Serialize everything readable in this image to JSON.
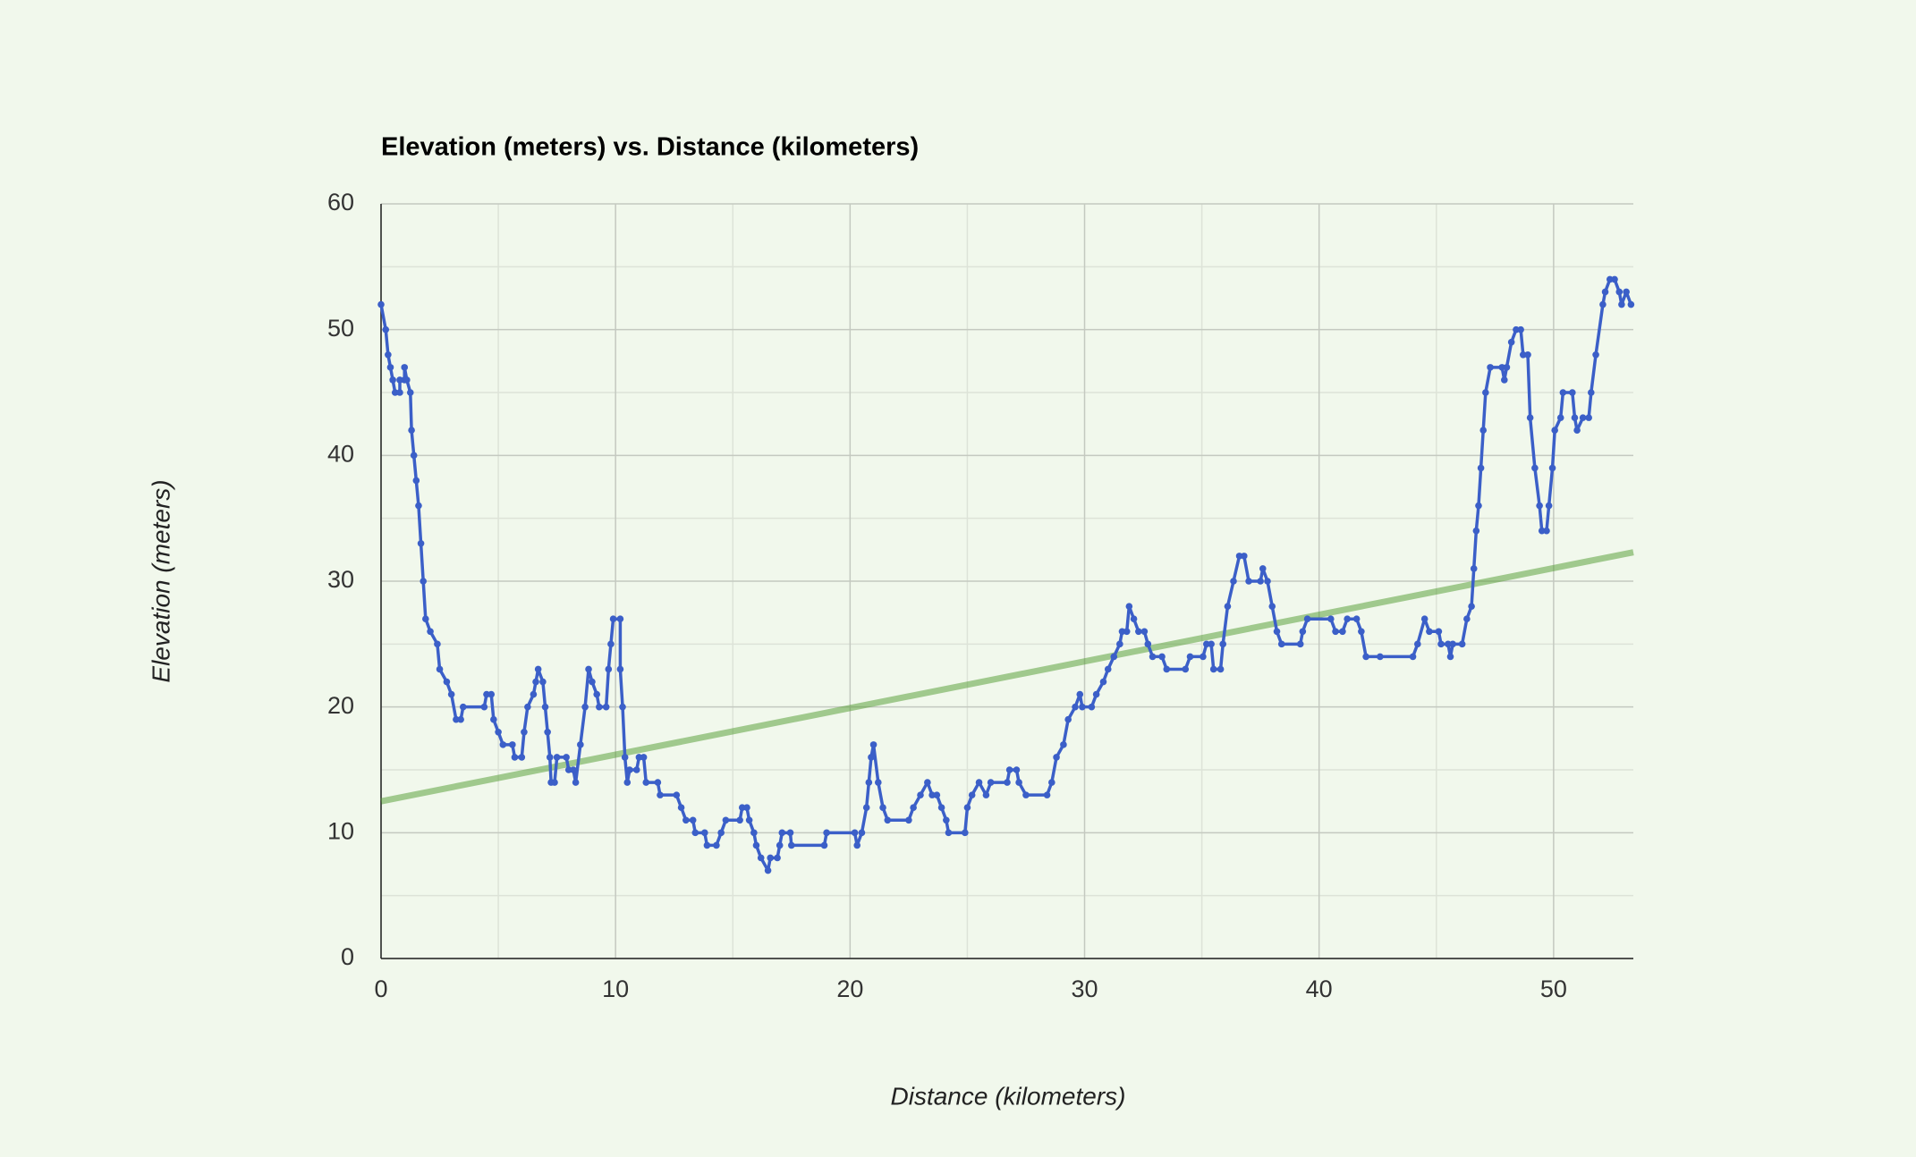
{
  "chart_data": {
    "type": "line",
    "title": "Elevation (meters) vs. Distance (kilometers)",
    "x_label": "Distance (kilometers)",
    "y_label": "Elevation (meters)",
    "xlim": [
      0,
      53.4
    ],
    "ylim": [
      0,
      60
    ],
    "xticks": [
      0,
      10,
      20,
      30,
      40,
      50
    ],
    "yticks": [
      0,
      10,
      20,
      30,
      40,
      50,
      60
    ],
    "xminor": [
      5,
      15,
      25,
      35,
      45
    ],
    "yminor": [
      5,
      15,
      25,
      35,
      45,
      55
    ],
    "grid": true,
    "markers": true,
    "x": [
      0,
      0.2,
      0.3,
      0.4,
      0.5,
      0.6,
      0.8,
      0.8,
      1.0,
      1.0,
      1.1,
      1.25,
      1.3,
      1.4,
      1.5,
      1.6,
      1.7,
      1.8,
      1.9,
      2.1,
      2.4,
      2.5,
      2.8,
      3.0,
      3.2,
      3.4,
      3.5,
      4.4,
      4.5,
      4.7,
      4.8,
      5.0,
      5.2,
      5.6,
      5.7,
      6.0,
      6.1,
      6.25,
      6.5,
      6.6,
      6.7,
      6.9,
      7.0,
      7.1,
      7.2,
      7.25,
      7.4,
      7.5,
      7.9,
      8.0,
      8.2,
      8.3,
      8.5,
      8.7,
      8.85,
      9.0,
      9.2,
      9.3,
      9.6,
      9.7,
      9.8,
      9.9,
      10.2,
      10.2,
      10.3,
      10.4,
      10.5,
      10.6,
      10.9,
      11.0,
      11.2,
      11.3,
      11.8,
      11.9,
      12.6,
      12.8,
      13.0,
      13.3,
      13.4,
      13.8,
      13.9,
      14.3,
      14.5,
      14.7,
      15.3,
      15.4,
      15.6,
      15.7,
      15.9,
      16.0,
      16.2,
      16.5,
      16.6,
      16.9,
      17.0,
      17.1,
      17.45,
      17.5,
      18.9,
      19.0,
      20.2,
      20.3,
      20.5,
      20.7,
      20.8,
      20.9,
      21.0,
      21.2,
      21.4,
      21.6,
      22.5,
      22.7,
      23.0,
      23.3,
      23.5,
      23.7,
      23.9,
      24.1,
      24.2,
      24.9,
      25.0,
      25.2,
      25.5,
      25.8,
      26.0,
      26.7,
      26.8,
      27.1,
      27.2,
      27.5,
      28.4,
      28.6,
      28.8,
      29.1,
      29.3,
      29.6,
      29.8,
      29.9,
      30.3,
      30.5,
      30.8,
      31.0,
      31.25,
      31.5,
      31.6,
      31.8,
      31.9,
      32.1,
      32.3,
      32.55,
      32.7,
      32.9,
      33.3,
      33.5,
      34.3,
      34.5,
      35.05,
      35.2,
      35.4,
      35.5,
      35.8,
      35.9,
      36.1,
      36.35,
      36.6,
      36.8,
      37.0,
      37.5,
      37.6,
      37.8,
      38.0,
      38.2,
      38.4,
      39.2,
      39.3,
      39.5,
      40.5,
      40.7,
      41.0,
      41.2,
      41.6,
      41.8,
      42.0,
      42.6,
      44.0,
      44.2,
      44.5,
      44.7,
      45.1,
      45.2,
      45.5,
      45.6,
      45.7,
      46.1,
      46.3,
      46.5,
      46.6,
      46.7,
      46.8,
      46.9,
      47.0,
      47.1,
      47.3,
      47.8,
      47.9,
      48.0,
      48.2,
      48.4,
      48.6,
      48.7,
      48.9,
      49.0,
      49.2,
      49.4,
      49.5,
      49.7,
      49.8,
      49.95,
      50.05,
      50.3,
      50.4,
      50.8,
      50.9,
      51.0,
      51.25,
      51.5,
      51.6,
      51.8,
      52.1,
      52.2,
      52.4,
      52.6,
      52.8,
      52.9,
      53.1,
      53.3
    ],
    "series": [
      {
        "color": "#3b5fc8",
        "values": [
          52,
          50,
          48,
          47,
          46,
          45,
          45,
          46,
          46,
          47,
          46,
          45,
          42,
          40,
          38,
          36,
          33,
          30,
          27,
          26,
          25,
          23,
          22,
          21,
          19,
          19,
          20,
          20,
          21,
          21,
          19,
          18,
          17,
          17,
          16,
          16,
          18,
          20,
          21,
          22,
          23,
          22,
          20,
          18,
          16,
          14,
          14,
          16,
          16,
          15,
          15,
          14,
          17,
          20,
          23,
          22,
          21,
          20,
          20,
          23,
          25,
          27,
          27,
          23,
          20,
          16,
          14,
          15,
          15,
          16,
          16,
          14,
          14,
          13,
          13,
          12,
          11,
          11,
          10,
          10,
          9,
          9,
          10,
          11,
          11,
          12,
          12,
          11,
          10,
          9,
          8,
          7,
          8,
          8,
          9,
          10,
          10,
          9,
          9,
          10,
          10,
          9,
          10,
          12,
          14,
          16,
          17,
          14,
          12,
          11,
          11,
          12,
          13,
          14,
          13,
          13,
          12,
          11,
          10,
          10,
          12,
          13,
          14,
          13,
          14,
          14,
          15,
          15,
          14,
          13,
          13,
          14,
          16,
          17,
          19,
          20,
          21,
          20,
          20,
          21,
          22,
          23,
          24,
          25,
          26,
          26,
          28,
          27,
          26,
          26,
          25,
          24,
          24,
          23,
          23,
          24,
          24,
          25,
          25,
          23,
          23,
          25,
          28,
          30,
          32,
          32,
          30,
          30,
          31,
          30,
          28,
          26,
          25,
          25,
          26,
          27,
          27,
          26,
          26,
          27,
          27,
          26,
          24,
          24,
          24,
          25,
          27,
          26,
          26,
          25,
          25,
          24,
          25,
          25,
          27,
          28,
          31,
          34,
          36,
          39,
          42,
          45,
          47,
          47,
          46,
          47,
          49,
          50,
          50,
          48,
          48,
          43,
          39,
          36,
          34,
          34,
          36,
          39,
          42,
          43,
          45,
          45,
          43,
          42,
          43,
          43,
          45,
          48,
          52,
          53,
          54,
          54,
          53,
          52,
          53,
          52
        ]
      }
    ],
    "trendline": {
      "x": [
        0,
        53.4
      ],
      "values": [
        12.5,
        32.3
      ],
      "color": "#4f9a2e"
    }
  }
}
